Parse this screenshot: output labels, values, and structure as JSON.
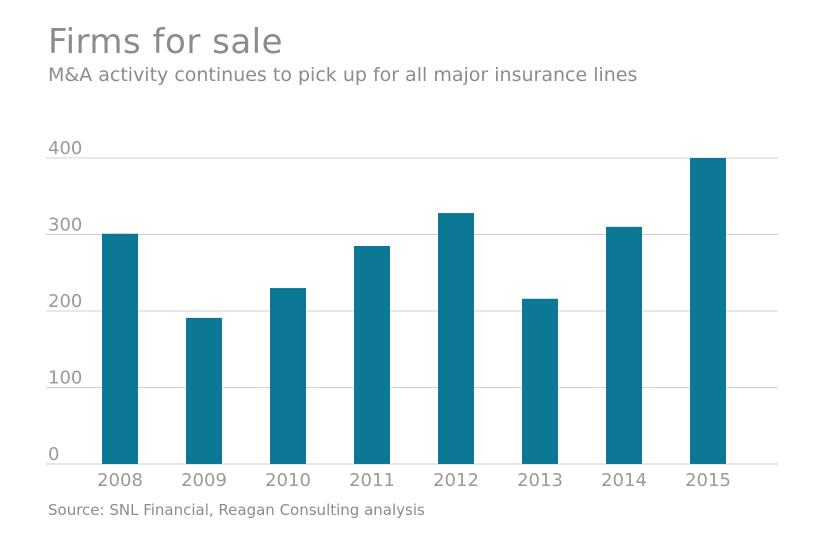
{
  "chart_data": {
    "type": "bar",
    "title": "Firms for sale",
    "subtitle": "M&A activity continues to pick up for all major insurance lines",
    "source": "Source: SNL Financial, Reagan Consulting analysis",
    "categories": [
      "2008",
      "2009",
      "2010",
      "2011",
      "2012",
      "2013",
      "2014",
      "2015"
    ],
    "values": [
      301,
      191,
      230,
      285,
      328,
      216,
      310,
      400
    ],
    "ylim": [
      0,
      400
    ],
    "yticks": [
      0,
      100,
      200,
      300,
      400
    ],
    "xlabel": "",
    "ylabel": "",
    "grid": true,
    "bar_color": "#0d7896",
    "grid_color": "#d0d0d0"
  }
}
